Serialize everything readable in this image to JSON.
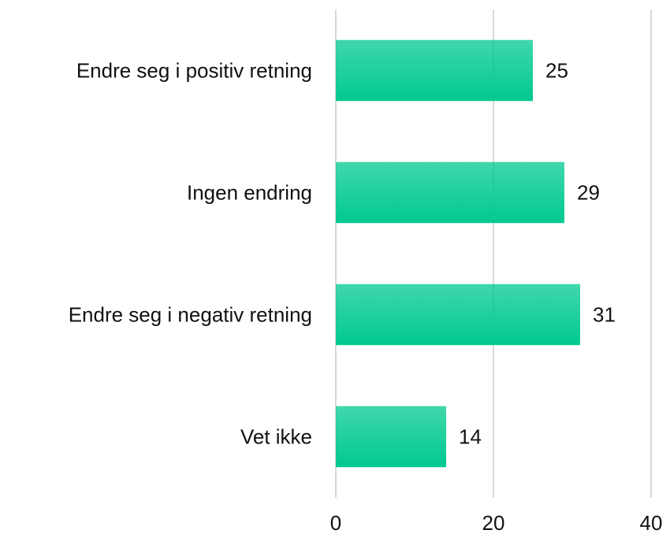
{
  "chart_data": {
    "type": "barh",
    "categories": [
      "Endre seg i positiv retning",
      "Ingen endring",
      "Endre seg i negativ retning",
      "Vet ikke"
    ],
    "values": [
      25,
      29,
      31,
      14
    ],
    "color": "#00c98f",
    "xlim": [
      0,
      40
    ],
    "xticks": [
      0,
      20,
      40
    ],
    "grid": true
  }
}
